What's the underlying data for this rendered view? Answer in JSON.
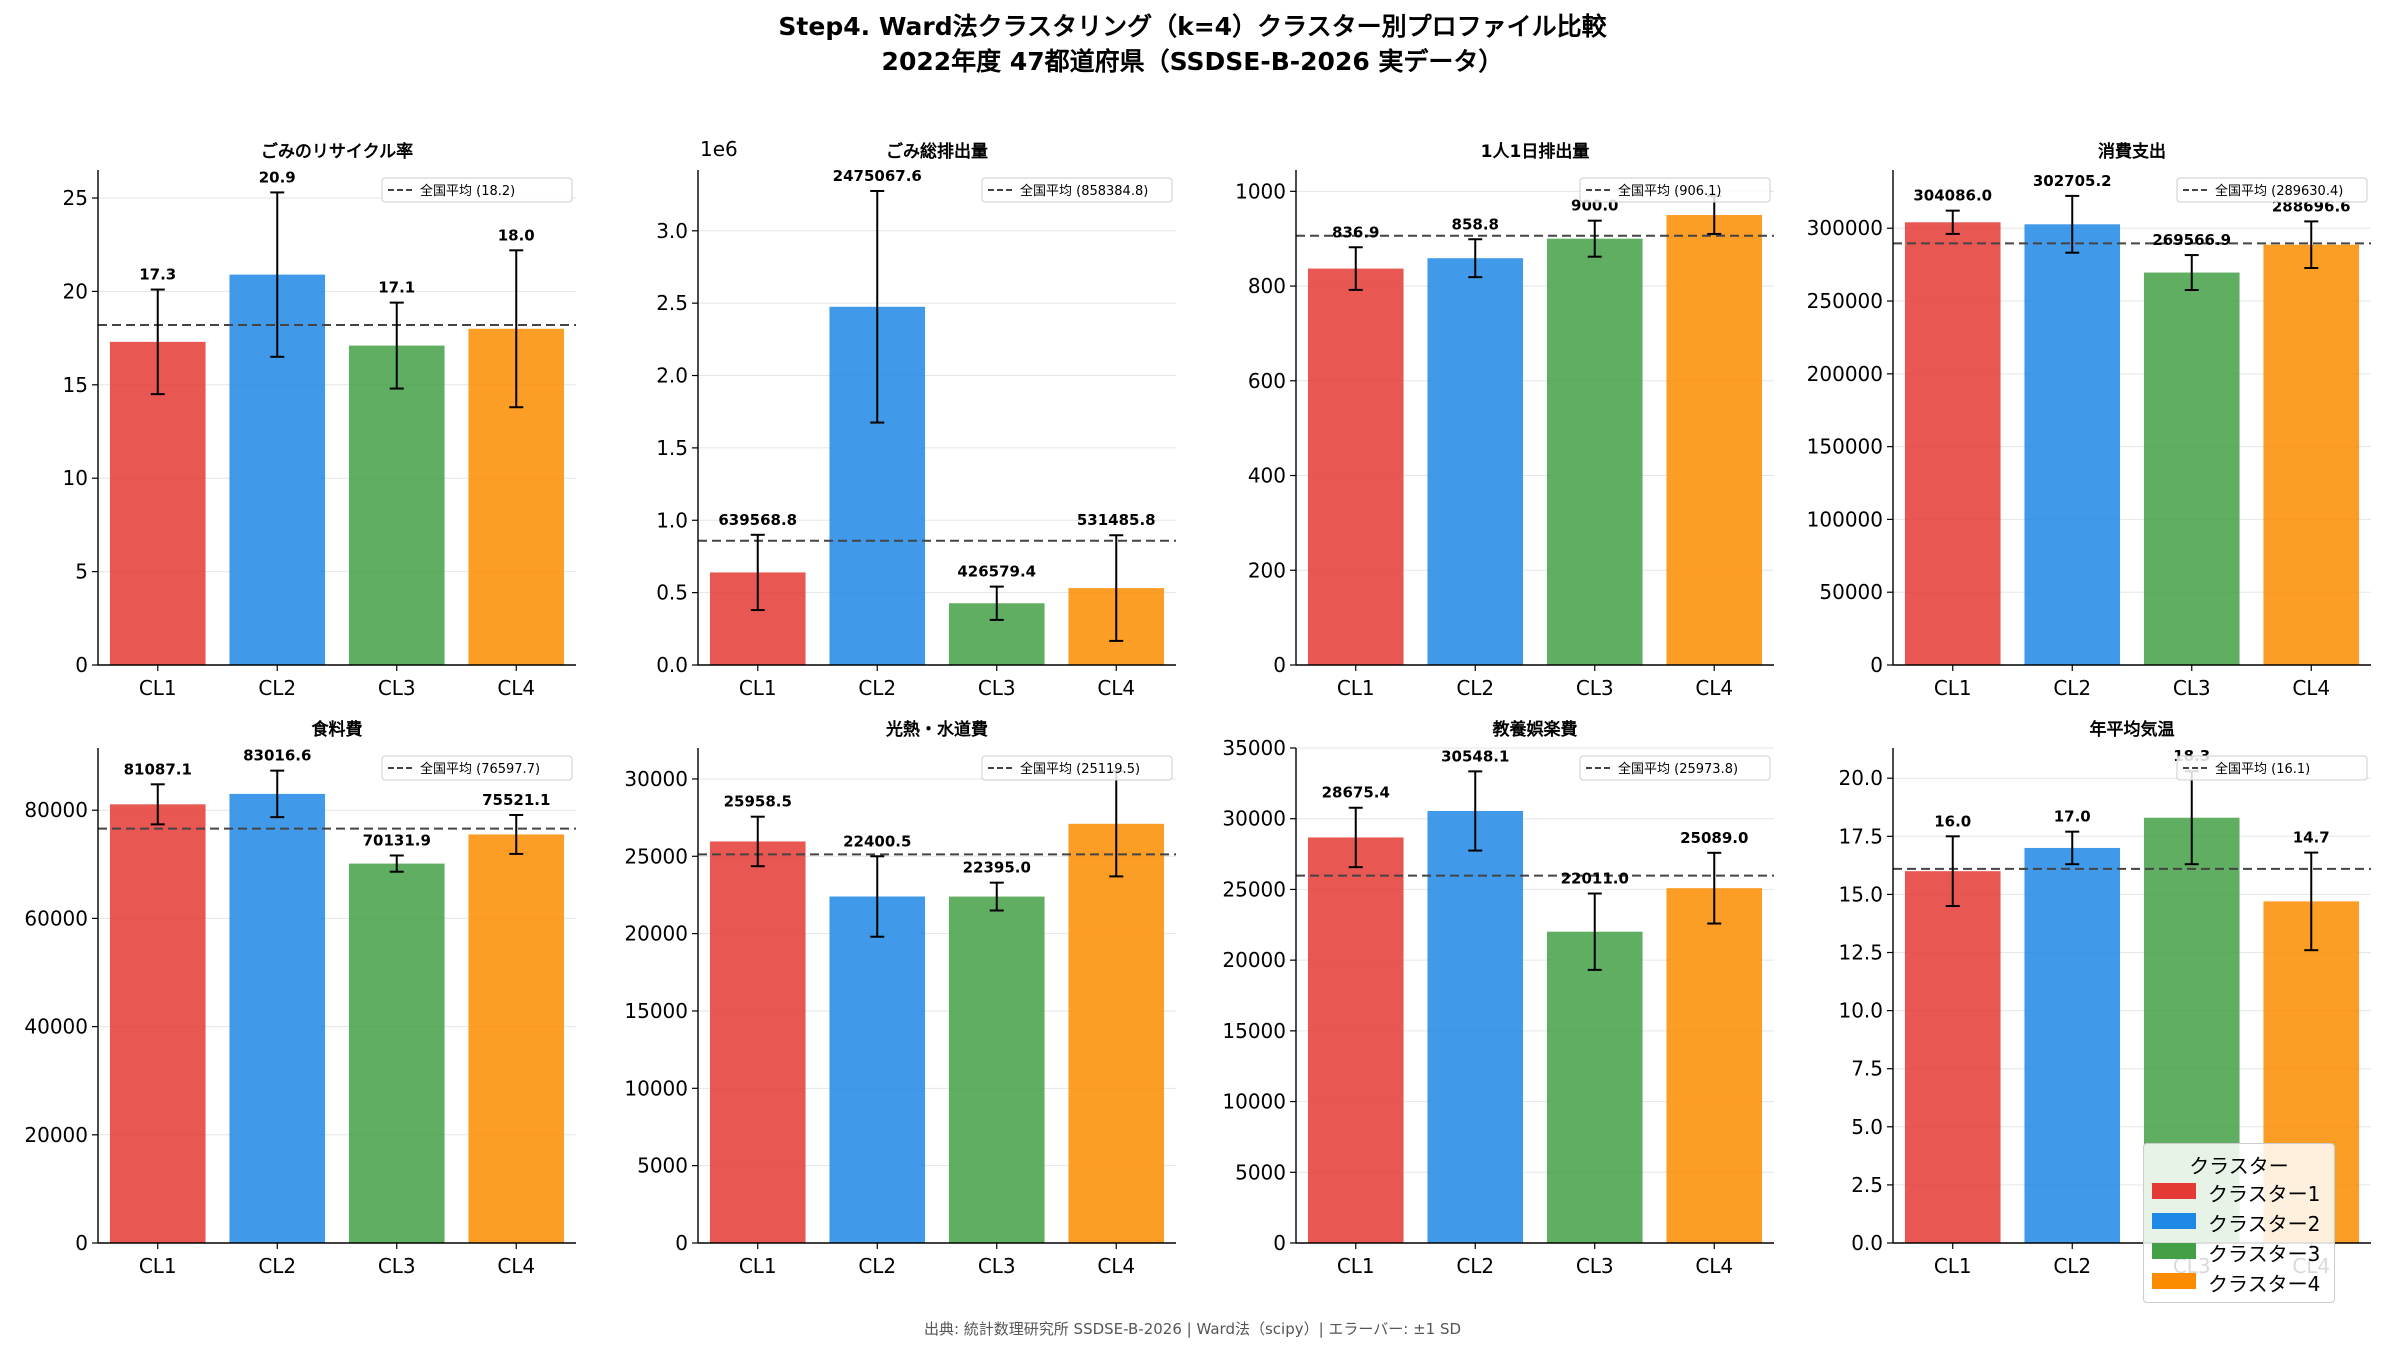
{
  "title": {
    "line1": "Step4. Ward法クラスタリング（k=4）クラスター別プロファイル比較",
    "line2": "2022年度 47都道府県（SSDSE-B-2026 実データ）"
  },
  "footer": "出典: 統計数理研究所 SSDSE-B-2026 | Ward法（scipy）| エラーバー: ±1 SD",
  "colors": [
    "#e53935",
    "#1e88e5",
    "#43a047",
    "#fb8c00"
  ],
  "legend": {
    "title": "クラスター",
    "items": [
      "クラスター1",
      "クラスター2",
      "クラスター3",
      "クラスター4"
    ]
  },
  "chart_data": [
    {
      "type": "bar",
      "title": "ごみのリサイクル率",
      "categories": [
        "CL1",
        "CL2",
        "CL3",
        "CL4"
      ],
      "values": [
        17.3,
        20.9,
        17.1,
        18.0
      ],
      "value_labels": [
        "17.3",
        "20.9",
        "17.1",
        "18.0"
      ],
      "errors": [
        2.8,
        4.4,
        2.3,
        4.2
      ],
      "ylim": [
        0,
        26.5
      ],
      "yticks": [
        0,
        5,
        10,
        15,
        20,
        25
      ],
      "ytick_labels": [
        "0",
        "5",
        "10",
        "15",
        "20",
        "25"
      ],
      "reference": 18.2,
      "reference_label": "全国平均 (18.2)",
      "offset_label": ""
    },
    {
      "type": "bar",
      "title": "ごみ総排出量",
      "categories": [
        "CL1",
        "CL2",
        "CL3",
        "CL4"
      ],
      "values": [
        639568.8,
        2475067.6,
        426579.4,
        531485.8
      ],
      "value_labels": [
        "639568.8",
        "2475067.6",
        "426579.4",
        "531485.8"
      ],
      "errors": [
        260000,
        800000,
        115000,
        365000
      ],
      "ylim": [
        0,
        3420000
      ],
      "yticks": [
        0,
        500000,
        1000000,
        1500000,
        2000000,
        2500000,
        3000000
      ],
      "ytick_labels": [
        "0.0",
        "0.5",
        "1.0",
        "1.5",
        "2.0",
        "2.5",
        "3.0"
      ],
      "reference": 858384.8,
      "reference_label": "全国平均 (858384.8)",
      "offset_label": "1e6"
    },
    {
      "type": "bar",
      "title": "1人1日排出量",
      "categories": [
        "CL1",
        "CL2",
        "CL3",
        "CL4"
      ],
      "values": [
        836.9,
        858.8,
        900.0,
        950.0
      ],
      "value_labels": [
        "836.9",
        "858.8",
        "900.0",
        ""
      ],
      "errors": [
        45,
        40,
        38,
        40
      ],
      "ylim": [
        0,
        1045
      ],
      "yticks": [
        0,
        200,
        400,
        600,
        800,
        1000
      ],
      "ytick_labels": [
        "0",
        "200",
        "400",
        "600",
        "800",
        "1000"
      ],
      "reference": 906.1,
      "reference_label": "全国平均 (906.1)",
      "offset_label": ""
    },
    {
      "type": "bar",
      "title": "消費支出",
      "categories": [
        "CL1",
        "CL2",
        "CL3",
        "CL4"
      ],
      "values": [
        304086.0,
        302705.2,
        269566.9,
        288696.6
      ],
      "value_labels": [
        "304086.0",
        "302705.2",
        "269566.9",
        "288696.6"
      ],
      "errors": [
        8000,
        19500,
        12000,
        16000
      ],
      "ylim": [
        0,
        340000
      ],
      "yticks": [
        0,
        50000,
        100000,
        150000,
        200000,
        250000,
        300000
      ],
      "ytick_labels": [
        "0",
        "50000",
        "100000",
        "150000",
        "200000",
        "250000",
        "300000"
      ],
      "reference": 289630.4,
      "reference_label": "全国平均 (289630.4)",
      "offset_label": ""
    },
    {
      "type": "bar",
      "title": "食料費",
      "categories": [
        "CL1",
        "CL2",
        "CL3",
        "CL4"
      ],
      "values": [
        81087.1,
        83016.6,
        70131.9,
        75521.1
      ],
      "value_labels": [
        "81087.1",
        "83016.6",
        "70131.9",
        "75521.1"
      ],
      "errors": [
        3700,
        4300,
        1500,
        3600
      ],
      "ylim": [
        0,
        91500
      ],
      "yticks": [
        0,
        20000,
        40000,
        60000,
        80000
      ],
      "ytick_labels": [
        "0",
        "20000",
        "40000",
        "60000",
        "80000"
      ],
      "reference": 76597.7,
      "reference_label": "全国平均 (76597.7)",
      "offset_label": ""
    },
    {
      "type": "bar",
      "title": "光熱・水道費",
      "categories": [
        "CL1",
        "CL2",
        "CL3",
        "CL4"
      ],
      "values": [
        25958.5,
        22400.5,
        22395.0,
        27100.0
      ],
      "value_labels": [
        "25958.5",
        "22400.5",
        "22395.0",
        ""
      ],
      "errors": [
        1600,
        2600,
        900,
        3400
      ],
      "ylim": [
        0,
        32000
      ],
      "yticks": [
        0,
        5000,
        10000,
        15000,
        20000,
        25000,
        30000
      ],
      "ytick_labels": [
        "0",
        "5000",
        "10000",
        "15000",
        "20000",
        "25000",
        "30000"
      ],
      "reference": 25119.5,
      "reference_label": "全国平均 (25119.5)",
      "offset_label": ""
    },
    {
      "type": "bar",
      "title": "教養娯楽費",
      "categories": [
        "CL1",
        "CL2",
        "CL3",
        "CL4"
      ],
      "values": [
        28675.4,
        30548.1,
        22011.0,
        25089.0
      ],
      "value_labels": [
        "28675.4",
        "30548.1",
        "22011.0",
        "25089.0"
      ],
      "errors": [
        2100,
        2800,
        2700,
        2500
      ],
      "ylim": [
        0,
        35000
      ],
      "yticks": [
        0,
        5000,
        10000,
        15000,
        20000,
        25000,
        30000,
        35000
      ],
      "ytick_labels": [
        "0",
        "5000",
        "10000",
        "15000",
        "20000",
        "25000",
        "30000",
        "35000"
      ],
      "reference": 25973.8,
      "reference_label": "全国平均 (25973.8)",
      "offset_label": ""
    },
    {
      "type": "bar",
      "title": "年平均気温",
      "categories": [
        "CL1",
        "CL2",
        "CL3",
        "CL4"
      ],
      "values": [
        16.0,
        17.0,
        18.3,
        14.7
      ],
      "value_labels": [
        "16.0",
        "17.0",
        "18.3",
        "14.7"
      ],
      "errors": [
        1.5,
        0.7,
        2.0,
        2.1
      ],
      "ylim": [
        0,
        21.3
      ],
      "yticks": [
        0,
        2.5,
        5,
        7.5,
        10,
        12.5,
        15,
        17.5,
        20
      ],
      "ytick_labels": [
        "0.0",
        "2.5",
        "5.0",
        "7.5",
        "10.0",
        "12.5",
        "15.0",
        "17.5",
        "20.0"
      ],
      "reference": 16.1,
      "reference_label": "全国平均 (16.1)",
      "offset_label": ""
    }
  ]
}
